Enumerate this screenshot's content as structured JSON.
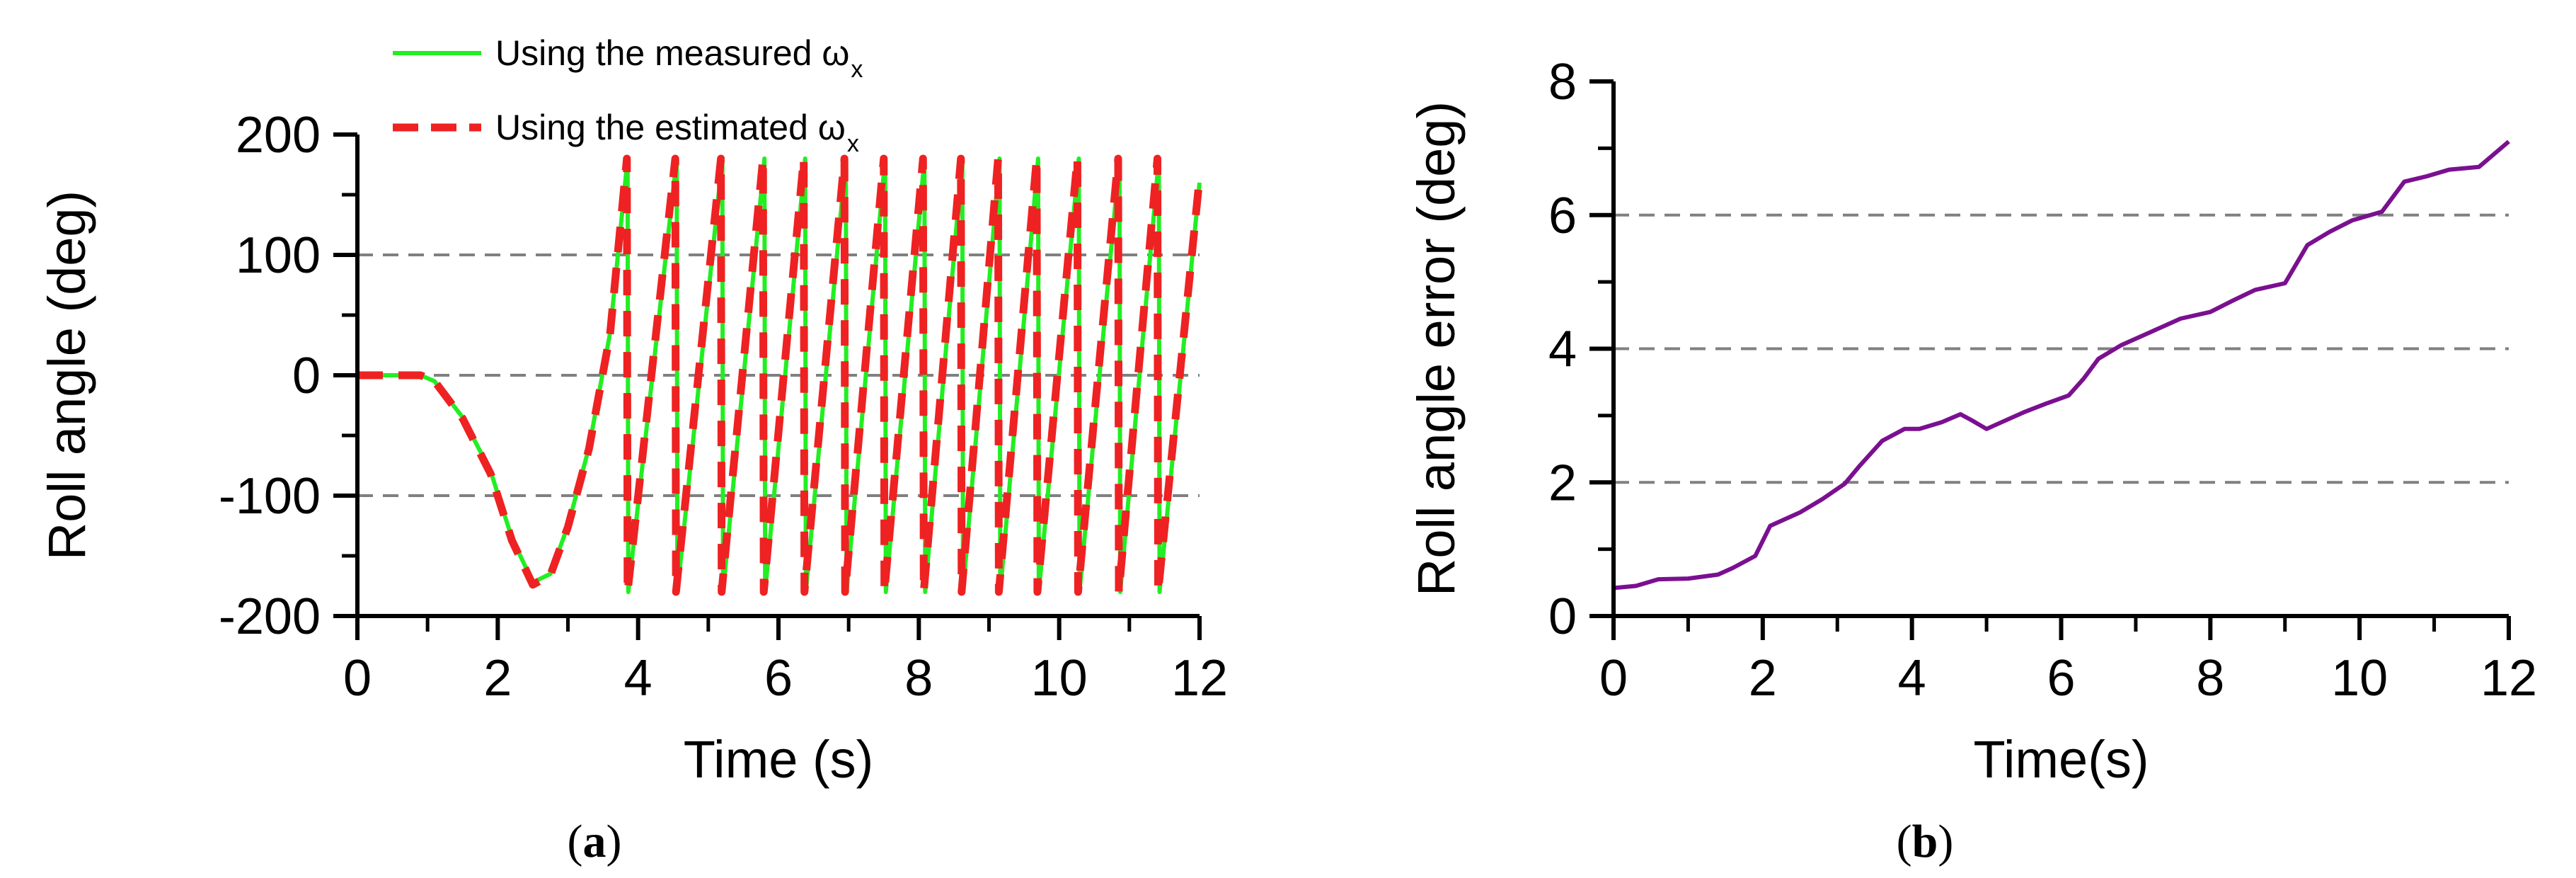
{
  "chart_data": [
    {
      "type": "line",
      "panel": "(a)",
      "caption_open": "(",
      "caption_letter": "a",
      "caption_close": ")",
      "xlabel": "Time (s)",
      "ylabel": "Roll angle (deg)",
      "xlim": [
        0,
        12
      ],
      "ylim": [
        -200,
        200
      ],
      "x_ticks": [
        0,
        2,
        4,
        6,
        8,
        10,
        12
      ],
      "x_tick_labels": [
        "0",
        "2",
        "4",
        "6",
        "8",
        "10",
        "12"
      ],
      "y_ticks": [
        -200,
        -100,
        0,
        100,
        200
      ],
      "y_tick_labels": [
        "-200",
        "-100",
        "0",
        "100",
        "200"
      ],
      "grid_y": [
        -100,
        0,
        100
      ],
      "legend": [
        {
          "label": "Using the measured ω",
          "subscript": "x",
          "color": "#22ee22",
          "style": "solid"
        },
        {
          "label": "Using the estimated ω",
          "subscript": "x",
          "color": "#ee2222",
          "style": "dashed"
        }
      ],
      "series": [
        {
          "name": "Using the measured ωx",
          "color": "#22ee22",
          "dash": false,
          "points": [
            [
              0,
              0
            ],
            [
              0.9,
              0
            ],
            [
              1.1,
              -5
            ],
            [
              1.5,
              -35
            ],
            [
              1.9,
              -80
            ],
            [
              2.2,
              -135
            ],
            [
              2.5,
              -172
            ],
            [
              2.75,
              -165
            ],
            [
              3.0,
              -125
            ],
            [
              3.3,
              -60
            ],
            [
              3.6,
              35
            ],
            [
              3.85,
              180
            ],
            [
              3.86,
              -180
            ],
            [
              4.55,
              180
            ],
            [
              4.56,
              -180
            ],
            [
              5.2,
              180
            ],
            [
              5.21,
              -180
            ],
            [
              5.8,
              180
            ],
            [
              5.81,
              -180
            ],
            [
              6.38,
              180
            ],
            [
              6.39,
              -180
            ],
            [
              6.96,
              180
            ],
            [
              6.97,
              -180
            ],
            [
              7.52,
              180
            ],
            [
              7.53,
              -180
            ],
            [
              8.08,
              180
            ],
            [
              8.09,
              -180
            ],
            [
              8.62,
              180
            ],
            [
              8.63,
              -180
            ],
            [
              9.15,
              180
            ],
            [
              9.16,
              -180
            ],
            [
              9.7,
              180
            ],
            [
              9.71,
              -180
            ],
            [
              10.28,
              180
            ],
            [
              10.29,
              -180
            ],
            [
              10.86,
              180
            ],
            [
              10.87,
              -180
            ],
            [
              11.42,
              180
            ],
            [
              11.43,
              -180
            ],
            [
              12.0,
              160
            ]
          ]
        },
        {
          "name": "Using the estimated ωx",
          "color": "#ee2222",
          "dash": true,
          "points": [
            [
              0,
              0
            ],
            [
              0.9,
              0
            ],
            [
              1.1,
              -5
            ],
            [
              1.5,
              -36
            ],
            [
              1.9,
              -82
            ],
            [
              2.2,
              -137
            ],
            [
              2.5,
              -174
            ],
            [
              2.75,
              -166
            ],
            [
              3.0,
              -126
            ],
            [
              3.3,
              -61
            ],
            [
              3.6,
              34
            ],
            [
              3.84,
              180
            ],
            [
              3.85,
              -180
            ],
            [
              4.53,
              180
            ],
            [
              4.54,
              -180
            ],
            [
              5.18,
              180
            ],
            [
              5.19,
              -180
            ],
            [
              5.78,
              180
            ],
            [
              5.79,
              -180
            ],
            [
              6.36,
              180
            ],
            [
              6.37,
              -180
            ],
            [
              6.94,
              180
            ],
            [
              6.95,
              -180
            ],
            [
              7.5,
              180
            ],
            [
              7.51,
              -180
            ],
            [
              8.06,
              180
            ],
            [
              8.07,
              -180
            ],
            [
              8.6,
              180
            ],
            [
              8.61,
              -180
            ],
            [
              9.13,
              180
            ],
            [
              9.14,
              -180
            ],
            [
              9.68,
              180
            ],
            [
              9.69,
              -180
            ],
            [
              10.26,
              180
            ],
            [
              10.27,
              -180
            ],
            [
              10.84,
              180
            ],
            [
              10.85,
              -180
            ],
            [
              11.4,
              180
            ],
            [
              11.41,
              -180
            ],
            [
              12.0,
              164
            ]
          ]
        }
      ]
    },
    {
      "type": "line",
      "panel": "(b)",
      "caption_open": "(",
      "caption_letter": "b",
      "caption_close": ")",
      "xlabel": "Time(s)",
      "ylabel": "Roll angle error  (deg)",
      "xlim": [
        0,
        12
      ],
      "ylim": [
        0,
        8
      ],
      "x_ticks": [
        0,
        2,
        4,
        6,
        8,
        10,
        12
      ],
      "x_tick_labels": [
        "0",
        "2",
        "4",
        "6",
        "8",
        "10",
        "12"
      ],
      "y_ticks": [
        0,
        2,
        4,
        6,
        8
      ],
      "y_tick_labels": [
        "0",
        "2",
        "4",
        "6",
        "8"
      ],
      "grid_y": [
        2,
        4,
        6
      ],
      "series": [
        {
          "name": "Roll angle error",
          "color": "#7a1090",
          "dash": false,
          "points": [
            [
              0,
              0.42
            ],
            [
              0.3,
              0.45
            ],
            [
              0.6,
              0.55
            ],
            [
              1.0,
              0.56
            ],
            [
              1.4,
              0.62
            ],
            [
              1.6,
              0.72
            ],
            [
              1.9,
              0.9
            ],
            [
              2.1,
              1.35
            ],
            [
              2.5,
              1.55
            ],
            [
              2.8,
              1.75
            ],
            [
              3.1,
              1.98
            ],
            [
              3.3,
              2.25
            ],
            [
              3.6,
              2.62
            ],
            [
              3.9,
              2.8
            ],
            [
              4.1,
              2.8
            ],
            [
              4.4,
              2.9
            ],
            [
              4.65,
              3.02
            ],
            [
              4.8,
              2.93
            ],
            [
              5.0,
              2.8
            ],
            [
              5.2,
              2.9
            ],
            [
              5.5,
              3.05
            ],
            [
              5.8,
              3.18
            ],
            [
              6.1,
              3.3
            ],
            [
              6.3,
              3.55
            ],
            [
              6.5,
              3.85
            ],
            [
              6.8,
              4.05
            ],
            [
              7.1,
              4.2
            ],
            [
              7.4,
              4.35
            ],
            [
              7.6,
              4.45
            ],
            [
              8.0,
              4.55
            ],
            [
              8.3,
              4.72
            ],
            [
              8.6,
              4.88
            ],
            [
              9.0,
              4.98
            ],
            [
              9.3,
              5.55
            ],
            [
              9.6,
              5.75
            ],
            [
              9.9,
              5.92
            ],
            [
              10.3,
              6.05
            ],
            [
              10.6,
              6.5
            ],
            [
              10.9,
              6.58
            ],
            [
              11.2,
              6.68
            ],
            [
              11.6,
              6.72
            ],
            [
              12.0,
              7.1
            ]
          ]
        }
      ]
    }
  ]
}
